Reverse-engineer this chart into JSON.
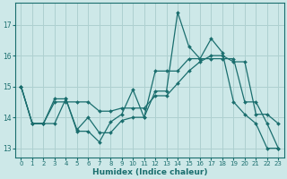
{
  "xlabel": "Humidex (Indice chaleur)",
  "ylabel": "",
  "background_color": "#cde8e8",
  "grid_color": "#aed0d0",
  "line_color": "#1a6e6e",
  "xlim": [
    -0.5,
    23.5
  ],
  "ylim": [
    12.7,
    17.7
  ],
  "yticks": [
    13,
    14,
    15,
    16,
    17
  ],
  "xticks": [
    0,
    1,
    2,
    3,
    4,
    5,
    6,
    7,
    8,
    9,
    10,
    11,
    12,
    13,
    14,
    15,
    16,
    17,
    18,
    19,
    20,
    21,
    22,
    23
  ],
  "series": [
    [
      15.0,
      13.8,
      13.8,
      14.6,
      14.6,
      13.55,
      13.55,
      13.2,
      13.85,
      14.1,
      14.9,
      14.0,
      14.85,
      14.85,
      17.4,
      16.3,
      15.9,
      16.55,
      16.1,
      14.5,
      14.1,
      13.8,
      13.0,
      13.0
    ],
    [
      15.0,
      13.8,
      13.8,
      13.8,
      14.6,
      13.6,
      14.0,
      13.5,
      13.5,
      13.9,
      14.0,
      14.0,
      15.5,
      15.5,
      15.5,
      15.9,
      15.9,
      15.9,
      15.9,
      15.9,
      14.5,
      14.5,
      13.8,
      13.0
    ],
    [
      15.0,
      13.8,
      13.8,
      14.5,
      14.5,
      14.5,
      14.5,
      14.2,
      14.2,
      14.3,
      14.3,
      14.3,
      14.7,
      14.7,
      15.1,
      15.5,
      15.8,
      16.0,
      16.0,
      15.8,
      15.8,
      14.1,
      14.1,
      13.8
    ]
  ]
}
